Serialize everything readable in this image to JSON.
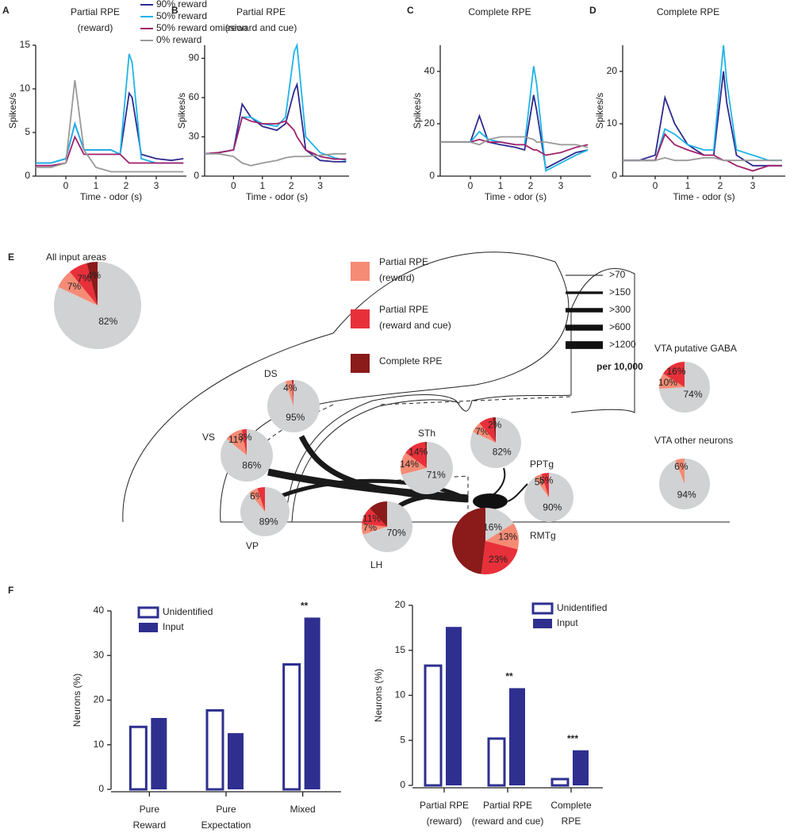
{
  "chart_data": [
    {
      "type": "line",
      "panel": "A",
      "title": [
        "Partial RPE",
        "(reward)"
      ],
      "title_color": "#f0715a",
      "ylabel": "Spikes/s",
      "xlabel": "Time - odor (s)",
      "xlim": [
        -1,
        4
      ],
      "ylim": [
        0,
        15
      ],
      "xticks": [
        0,
        1,
        2,
        3
      ],
      "yticks": [
        0,
        5,
        10,
        15
      ],
      "legend": "upper right",
      "x": [
        -1,
        -0.5,
        0,
        0.3,
        0.6,
        1,
        1.5,
        1.8,
        2.1,
        2.2,
        2.5,
        3,
        3.5,
        3.9
      ],
      "series": [
        {
          "name": "90% reward",
          "color": "#2e2a8f",
          "values": [
            1.5,
            1.5,
            2,
            6,
            3,
            3,
            3,
            2.5,
            9.5,
            9,
            2.5,
            2,
            1.8,
            2
          ]
        },
        {
          "name": "50% reward",
          "color": "#1eb4e8",
          "values": [
            1.5,
            1.5,
            2,
            6,
            3,
            3,
            3,
            2.5,
            14,
            13,
            2,
            1.5,
            1.5,
            1.5
          ]
        },
        {
          "name": "50% reward omission",
          "color": "#a0206a",
          "values": [
            1.2,
            1.2,
            1.5,
            4.5,
            2.5,
            2.5,
            2.5,
            2.5,
            1.5,
            1.5,
            1.5,
            1.5,
            1.5,
            1.5
          ]
        },
        {
          "name": "0% reward",
          "color": "#999999",
          "values": [
            1,
            1,
            1.5,
            11,
            3,
            1,
            0.5,
            0.5,
            0.5,
            0.5,
            0.5,
            0.5,
            0.5,
            0.5
          ]
        }
      ]
    },
    {
      "type": "line",
      "panel": "B",
      "title": [
        "Partial RPE",
        "(reward and cue)"
      ],
      "title_color": "#e8303a",
      "ylabel": "Spikes/s",
      "xlabel": "Time - odor (s)",
      "xlim": [
        -1,
        4
      ],
      "ylim": [
        0,
        100
      ],
      "xticks": [
        0,
        1,
        2,
        3
      ],
      "yticks": [
        0,
        30,
        60,
        90
      ],
      "x": [
        -1,
        -0.5,
        0,
        0.3,
        0.6,
        1,
        1.5,
        1.8,
        2.1,
        2.2,
        2.5,
        3,
        3.5,
        3.9
      ],
      "series": [
        {
          "color": "#2e2a8f",
          "values": [
            17,
            18,
            20,
            55,
            45,
            38,
            35,
            40,
            65,
            70,
            20,
            12,
            11,
            11
          ]
        },
        {
          "color": "#1eb4e8",
          "values": [
            17,
            18,
            20,
            45,
            45,
            40,
            38,
            45,
            95,
            100,
            30,
            18,
            14,
            12
          ]
        },
        {
          "color": "#a0206a",
          "values": [
            17,
            18,
            20,
            45,
            42,
            40,
            40,
            42,
            35,
            30,
            20,
            15,
            13,
            13
          ]
        },
        {
          "color": "#999999",
          "values": [
            17,
            17,
            15,
            10,
            8,
            10,
            12,
            14,
            15,
            15,
            15,
            16,
            17,
            17
          ]
        }
      ]
    },
    {
      "type": "line",
      "panel": "C",
      "title": [
        "Complete RPE"
      ],
      "title_color": "#8b1a1a",
      "ylabel": "Spikes/s",
      "xlabel": "Time - odor (s)",
      "xlim": [
        -1,
        4
      ],
      "ylim": [
        0,
        50
      ],
      "xticks": [
        0,
        1,
        2,
        3
      ],
      "yticks": [
        0,
        20,
        40
      ],
      "x": [
        -1,
        -0.5,
        0,
        0.3,
        0.6,
        1,
        1.5,
        1.8,
        2.1,
        2.2,
        2.5,
        3,
        3.5,
        3.9
      ],
      "series": [
        {
          "color": "#2e2a8f",
          "values": [
            13,
            13,
            13,
            23,
            13,
            12,
            11,
            10,
            31,
            25,
            3,
            6,
            9,
            10
          ]
        },
        {
          "color": "#1eb4e8",
          "values": [
            13,
            13,
            13,
            17,
            14,
            13,
            12,
            12,
            42,
            35,
            2,
            5,
            8,
            10
          ]
        },
        {
          "color": "#a0206a",
          "values": [
            13,
            13,
            13,
            14,
            13,
            13,
            12,
            12,
            10,
            10,
            8,
            9,
            11,
            12
          ]
        },
        {
          "color": "#999999",
          "values": [
            13,
            13,
            13,
            12,
            14,
            15,
            15,
            15,
            14,
            13,
            13,
            12,
            12,
            11
          ]
        }
      ]
    },
    {
      "type": "line",
      "panel": "D",
      "title": [
        "Complete RPE"
      ],
      "title_color": "#8b1a1a",
      "ylabel": "Spikes/s",
      "xlabel": "Time - odor (s)",
      "xlim": [
        -1,
        4
      ],
      "ylim": [
        0,
        25
      ],
      "xticks": [
        0,
        1,
        2,
        3
      ],
      "yticks": [
        0,
        10,
        20
      ],
      "x": [
        -1,
        -0.5,
        0,
        0.3,
        0.6,
        1,
        1.5,
        1.8,
        2.1,
        2.2,
        2.5,
        3,
        3.5,
        3.9
      ],
      "series": [
        {
          "color": "#2e2a8f",
          "values": [
            3,
            3,
            4,
            15,
            10,
            6,
            4,
            4,
            20,
            14,
            4,
            2,
            2,
            2
          ]
        },
        {
          "color": "#1eb4e8",
          "values": [
            3,
            3,
            3,
            9,
            8,
            6,
            5,
            5,
            25,
            18,
            5,
            4,
            3,
            3
          ]
        },
        {
          "color": "#a0206a",
          "values": [
            3,
            3,
            3,
            8,
            6,
            5,
            4,
            4,
            3,
            3,
            2,
            1,
            2,
            2
          ]
        },
        {
          "color": "#999999",
          "values": [
            3,
            3,
            3,
            3.5,
            3,
            3,
            3.5,
            3.5,
            3,
            3,
            3,
            3,
            3,
            3
          ]
        }
      ]
    },
    {
      "type": "bar",
      "panel": "F",
      "ylabel": "Neurons (%)",
      "ylim": [
        0,
        40
      ],
      "yticks": [
        0,
        10,
        20,
        30,
        40
      ],
      "categories": [
        [
          "Pure",
          "Reward"
        ],
        [
          "Pure",
          "Expectation"
        ],
        [
          "Mixed"
        ]
      ],
      "category_colors": [
        "#1f6fbf",
        "#f0931e",
        "#8dc63f"
      ],
      "series": [
        {
          "name": "Unidentified",
          "color": "#2e2f8f",
          "outline": true,
          "values": [
            14,
            17.7,
            28
          ]
        },
        {
          "name": "Input",
          "color": "#2e2f8f",
          "outline": false,
          "values": [
            16,
            12.6,
            38.5
          ]
        }
      ],
      "annotations": [
        null,
        null,
        "**"
      ]
    },
    {
      "type": "bar",
      "ylabel": "Neurons (%)",
      "ylim": [
        0,
        20
      ],
      "yticks": [
        0,
        5,
        10,
        15,
        20
      ],
      "categories": [
        [
          "Partial RPE",
          "(reward)"
        ],
        [
          "Partial RPE",
          "(reward and cue)"
        ],
        [
          "Complete",
          "RPE"
        ]
      ],
      "category_colors": [
        "#f58b75",
        "#e8303a",
        "#8b1a1a"
      ],
      "series": [
        {
          "name": "Unidentified",
          "color": "#2e2f8f",
          "outline": true,
          "values": [
            13.3,
            5.2,
            0.7
          ]
        },
        {
          "name": "Input",
          "color": "#2e2f8f",
          "outline": false,
          "values": [
            17.6,
            10.8,
            3.9
          ]
        }
      ],
      "annotations": [
        null,
        "**",
        "***"
      ]
    }
  ],
  "diagram": {
    "panel": "E",
    "colors": [
      "#f58b75",
      "#e8303a",
      "#8b1a1a",
      "#d1d2d4"
    ],
    "legend": [
      [
        "Partial RPE",
        "(reward)"
      ],
      [
        "Partial RPE",
        "(reward and cue)"
      ],
      [
        "Complete RPE"
      ]
    ],
    "width_legend": [
      ">70",
      ">150",
      ">300",
      ">600",
      ">1200"
    ],
    "width_note": "per 10,000",
    "pies": [
      {
        "label": "All input areas",
        "values": [
          7,
          7,
          4,
          82
        ],
        "value_labels": [
          "7%",
          "7%",
          "4%",
          "82%"
        ]
      },
      {
        "label": "DS",
        "values": [
          4,
          0.5,
          0.5,
          95
        ],
        "value_labels": [
          "4%",
          null,
          null,
          "95%"
        ]
      },
      {
        "label": "VS",
        "values": [
          11,
          3,
          0,
          86
        ],
        "value_labels": [
          "11%",
          "3%",
          null,
          "86%"
        ]
      },
      {
        "label": "VP",
        "values": [
          6,
          5,
          0,
          89
        ],
        "value_labels": [
          "6%",
          null,
          null,
          "89%"
        ]
      },
      {
        "label": "STh",
        "values": [
          14,
          14,
          1,
          71
        ],
        "value_labels": [
          "14%",
          "14%",
          null,
          "71%"
        ]
      },
      {
        "label": "LH",
        "values": [
          7,
          11,
          12,
          70
        ],
        "value_labels": [
          "7%",
          "11%",
          null,
          "70%"
        ]
      },
      {
        "label": "PPTg",
        "values": [
          7,
          9,
          2,
          82
        ],
        "value_labels": [
          "7%",
          null,
          "2%",
          "82%"
        ]
      },
      {
        "label": "RMTg",
        "values": [
          5,
          5,
          0,
          90
        ],
        "value_labels": [
          "5%",
          "5%",
          null,
          "90%"
        ]
      },
      {
        "values": [
          13,
          23,
          48,
          16
        ],
        "value_labels": [
          "13%",
          "23%",
          null,
          "16%"
        ]
      },
      {
        "label": "VTA  putative GABA",
        "values": [
          10,
          16,
          0,
          74
        ],
        "value_labels": [
          "10%",
          "16%",
          null,
          "74%"
        ]
      },
      {
        "label": "VTA other neurons",
        "values": [
          6,
          0,
          0,
          94
        ],
        "value_labels": [
          "6%",
          null,
          null,
          "94%"
        ]
      }
    ]
  }
}
